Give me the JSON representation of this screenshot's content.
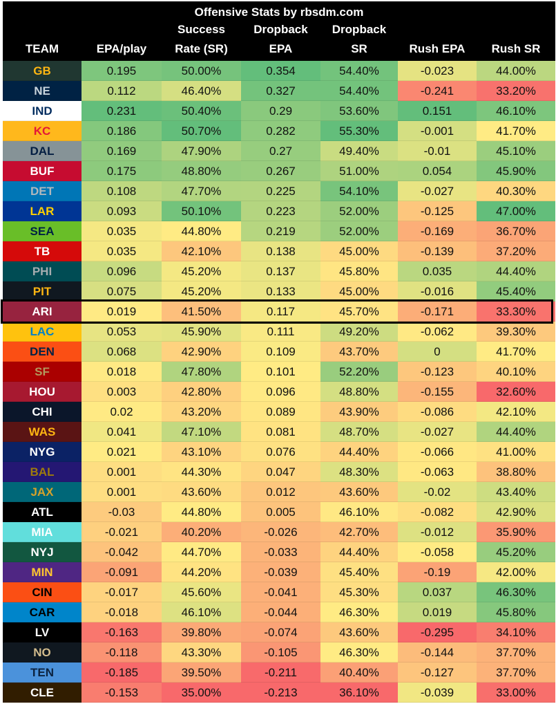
{
  "title": "Offensive Stats by rbsdm.com",
  "chart_data": {
    "type": "table",
    "title": "Offensive Stats by rbsdm.com",
    "columns": [
      {
        "key": "team",
        "lines": [
          "TEAM"
        ]
      },
      {
        "key": "epa_play",
        "lines": [
          "EPA/play"
        ]
      },
      {
        "key": "success_rate",
        "lines": [
          "Success",
          "Rate (SR)"
        ]
      },
      {
        "key": "dropback_epa",
        "lines": [
          "Dropback",
          "EPA"
        ]
      },
      {
        "key": "dropback_sr",
        "lines": [
          "Dropback",
          "SR"
        ]
      },
      {
        "key": "rush_epa",
        "lines": [
          "Rush EPA"
        ]
      },
      {
        "key": "rush_sr",
        "lines": [
          "Rush SR"
        ]
      }
    ],
    "highlighted_team": "ARI",
    "rows": [
      {
        "team": "GB",
        "team_bg": "#203731",
        "team_fg": "#FFB612",
        "values": [
          "0.195",
          "50.00%",
          "0.354",
          "54.40%",
          "-0.023",
          "44.00%"
        ]
      },
      {
        "team": "NE",
        "team_bg": "#002244",
        "team_fg": "#C8D3DC",
        "values": [
          "0.112",
          "46.40%",
          "0.327",
          "54.40%",
          "-0.241",
          "33.20%"
        ]
      },
      {
        "team": "IND",
        "team_bg": "#FFFFFF",
        "team_fg": "#002C5F",
        "values": [
          "0.231",
          "50.40%",
          "0.29",
          "53.60%",
          "0.151",
          "46.10%"
        ]
      },
      {
        "team": "KC",
        "team_bg": "#FFB81C",
        "team_fg": "#E31837",
        "values": [
          "0.186",
          "50.70%",
          "0.282",
          "55.30%",
          "-0.001",
          "41.70%"
        ]
      },
      {
        "team": "DAL",
        "team_bg": "#869397",
        "team_fg": "#041E42",
        "values": [
          "0.169",
          "47.90%",
          "0.27",
          "49.40%",
          "-0.01",
          "45.10%"
        ]
      },
      {
        "team": "BUF",
        "team_bg": "#C60C30",
        "team_fg": "#FFFFFF",
        "values": [
          "0.175",
          "48.80%",
          "0.267",
          "51.00%",
          "0.054",
          "45.90%"
        ]
      },
      {
        "team": "DET",
        "team_bg": "#0076B6",
        "team_fg": "#B0B7BC",
        "values": [
          "0.108",
          "47.70%",
          "0.225",
          "54.10%",
          "-0.027",
          "40.30%"
        ]
      },
      {
        "team": "LAR",
        "team_bg": "#003594",
        "team_fg": "#FFD100",
        "values": [
          "0.093",
          "50.10%",
          "0.223",
          "52.00%",
          "-0.125",
          "47.00%"
        ]
      },
      {
        "team": "SEA",
        "team_bg": "#69BE28",
        "team_fg": "#002244",
        "values": [
          "0.035",
          "44.80%",
          "0.219",
          "52.00%",
          "-0.169",
          "36.70%"
        ]
      },
      {
        "team": "TB",
        "team_bg": "#D50A0A",
        "team_fg": "#FFFFFF",
        "values": [
          "0.035",
          "42.10%",
          "0.138",
          "45.00%",
          "-0.139",
          "37.20%"
        ]
      },
      {
        "team": "PHI",
        "team_bg": "#004C54",
        "team_fg": "#A5ACAF",
        "values": [
          "0.096",
          "45.20%",
          "0.137",
          "45.80%",
          "0.035",
          "44.40%"
        ]
      },
      {
        "team": "PIT",
        "team_bg": "#101820",
        "team_fg": "#FFB612",
        "values": [
          "0.075",
          "45.20%",
          "0.133",
          "45.00%",
          "-0.016",
          "45.40%"
        ]
      },
      {
        "team": "ARI",
        "team_bg": "#97233F",
        "team_fg": "#FFFFFF",
        "values": [
          "0.019",
          "41.50%",
          "0.117",
          "45.70%",
          "-0.171",
          "33.30%"
        ]
      },
      {
        "team": "LAC",
        "team_bg": "#FFC20E",
        "team_fg": "#0080C6",
        "values": [
          "0.053",
          "45.90%",
          "0.111",
          "49.20%",
          "-0.062",
          "39.30%"
        ]
      },
      {
        "team": "DEN",
        "team_bg": "#FB4F14",
        "team_fg": "#002244",
        "values": [
          "0.068",
          "42.90%",
          "0.109",
          "43.70%",
          "0",
          "41.70%"
        ]
      },
      {
        "team": "SF",
        "team_bg": "#AA0000",
        "team_fg": "#B3995D",
        "values": [
          "0.018",
          "47.80%",
          "0.101",
          "52.20%",
          "-0.123",
          "40.10%"
        ]
      },
      {
        "team": "HOU",
        "team_bg": "#A71930",
        "team_fg": "#FFFFFF",
        "values": [
          "0.003",
          "42.80%",
          "0.096",
          "48.80%",
          "-0.155",
          "32.60%"
        ]
      },
      {
        "team": "CHI",
        "team_bg": "#0B162A",
        "team_fg": "#FFFFFF",
        "values": [
          "0.02",
          "43.20%",
          "0.089",
          "43.90%",
          "-0.086",
          "42.10%"
        ]
      },
      {
        "team": "WAS",
        "team_bg": "#5A1414",
        "team_fg": "#FFB612",
        "values": [
          "0.041",
          "47.10%",
          "0.081",
          "48.70%",
          "-0.027",
          "44.40%"
        ]
      },
      {
        "team": "NYG",
        "team_bg": "#0B2265",
        "team_fg": "#FFFFFF",
        "values": [
          "0.021",
          "43.10%",
          "0.076",
          "44.40%",
          "-0.066",
          "41.00%"
        ]
      },
      {
        "team": "BAL",
        "team_bg": "#241773",
        "team_fg": "#9E7C0C",
        "values": [
          "0.001",
          "44.30%",
          "0.047",
          "48.30%",
          "-0.063",
          "38.80%"
        ]
      },
      {
        "team": "JAX",
        "team_bg": "#006778",
        "team_fg": "#D7A22A",
        "values": [
          "0.001",
          "43.60%",
          "0.012",
          "43.60%",
          "-0.02",
          "43.40%"
        ]
      },
      {
        "team": "ATL",
        "team_bg": "#000000",
        "team_fg": "#FFFFFF",
        "values": [
          "-0.03",
          "44.80%",
          "0.005",
          "46.10%",
          "-0.082",
          "42.90%"
        ]
      },
      {
        "team": "MIA",
        "team_bg": "#61DEDC",
        "team_fg": "#FFFFFF",
        "values": [
          "-0.021",
          "40.20%",
          "-0.026",
          "42.70%",
          "-0.012",
          "35.90%"
        ]
      },
      {
        "team": "NYJ",
        "team_bg": "#125740",
        "team_fg": "#FFFFFF",
        "values": [
          "-0.042",
          "44.70%",
          "-0.033",
          "44.40%",
          "-0.058",
          "45.20%"
        ]
      },
      {
        "team": "MIN",
        "team_bg": "#4F2683",
        "team_fg": "#FFC62F",
        "values": [
          "-0.091",
          "44.20%",
          "-0.039",
          "45.40%",
          "-0.19",
          "42.00%"
        ]
      },
      {
        "team": "CIN",
        "team_bg": "#FB4F14",
        "team_fg": "#000000",
        "values": [
          "-0.017",
          "45.60%",
          "-0.041",
          "45.30%",
          "0.037",
          "46.30%"
        ]
      },
      {
        "team": "CAR",
        "team_bg": "#0085CA",
        "team_fg": "#000000",
        "values": [
          "-0.018",
          "46.10%",
          "-0.044",
          "46.30%",
          "0.019",
          "45.80%"
        ]
      },
      {
        "team": "LV",
        "team_bg": "#000000",
        "team_fg": "#FFFFFF",
        "values": [
          "-0.163",
          "39.80%",
          "-0.074",
          "43.60%",
          "-0.295",
          "34.10%"
        ]
      },
      {
        "team": "NO",
        "team_bg": "#101820",
        "team_fg": "#D3BC8D",
        "values": [
          "-0.118",
          "43.30%",
          "-0.105",
          "46.30%",
          "-0.144",
          "37.70%"
        ]
      },
      {
        "team": "TEN",
        "team_bg": "#4B92DB",
        "team_fg": "#0C2340",
        "values": [
          "-0.185",
          "39.50%",
          "-0.211",
          "40.40%",
          "-0.127",
          "37.70%"
        ]
      },
      {
        "team": "CLE",
        "team_bg": "#311D00",
        "team_fg": "#FFFFFF",
        "values": [
          "-0.153",
          "35.00%",
          "-0.213",
          "36.10%",
          "-0.039",
          "33.00%"
        ]
      }
    ]
  }
}
